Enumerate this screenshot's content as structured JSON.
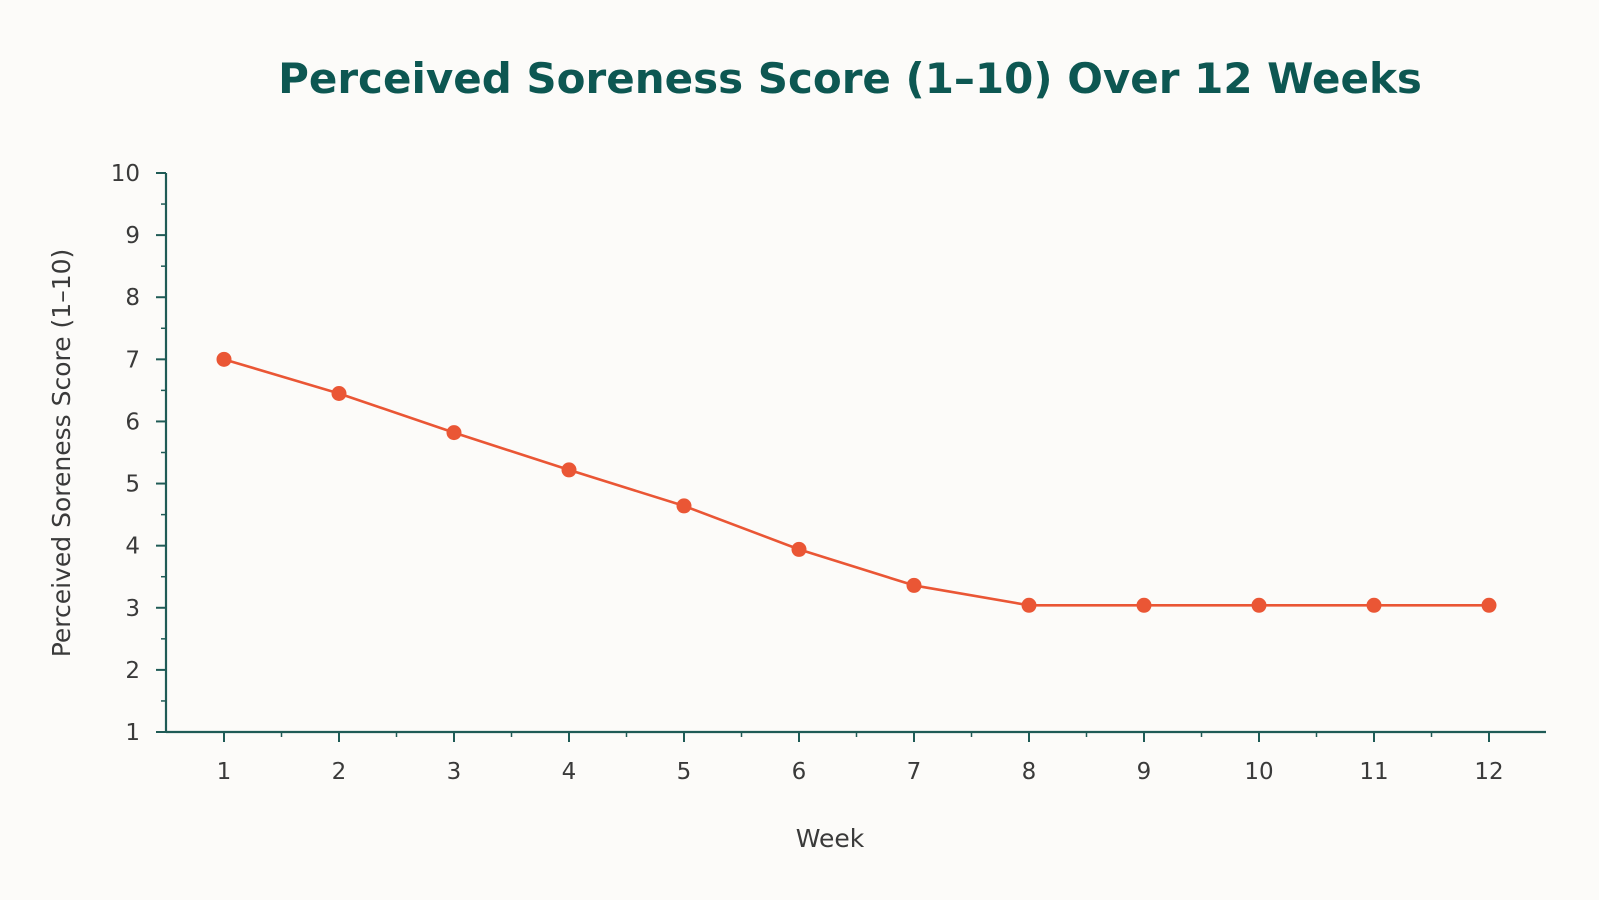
{
  "colors": {
    "background": "#fcfbf9",
    "title": "#0d5752",
    "axis": "#1f5b56",
    "tick_text": "#3a3a3a",
    "series": "#ea5635"
  },
  "chart_data": {
    "type": "line",
    "title": "Perceived Soreness Score (1–10) Over 12 Weeks",
    "xlabel": "Week",
    "ylabel": "Perceived Soreness Score (1–10)",
    "x": [
      1,
      2,
      3,
      4,
      5,
      6,
      7,
      8,
      9,
      10,
      11,
      12
    ],
    "x_tick_labels": [
      "1",
      "2",
      "3",
      "4",
      "5",
      "6",
      "7",
      "8",
      "9",
      "10",
      "11",
      "12"
    ],
    "y_tick_labels": [
      "1",
      "2",
      "3",
      "4",
      "5",
      "6",
      "7",
      "8",
      "9",
      "10"
    ],
    "ylim": [
      1,
      10
    ],
    "grid": false,
    "legend": "none",
    "series": [
      {
        "values": [
          7.0,
          6.45,
          5.82,
          5.22,
          4.64,
          3.94,
          3.36,
          3.04,
          3.04,
          3.04,
          3.04,
          3.04
        ]
      }
    ]
  }
}
